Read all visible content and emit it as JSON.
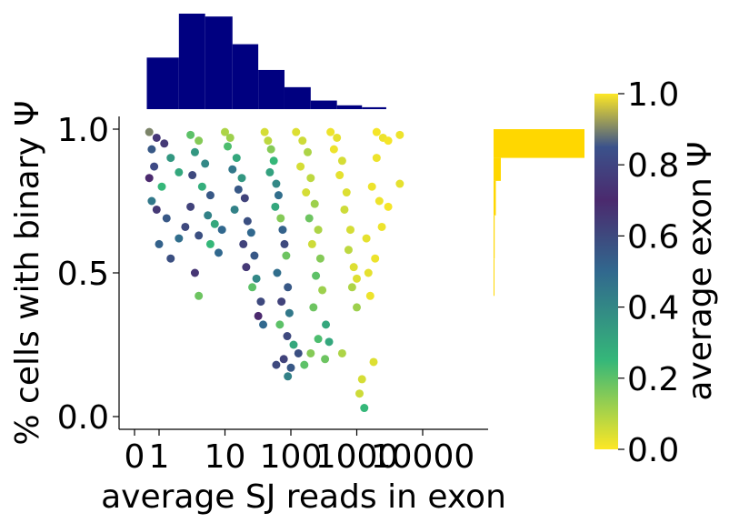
{
  "chart_data": [
    {
      "type": "scatter",
      "panel": "main",
      "xlabel": "average SJ reads in exon",
      "ylabel": "% cells with binary Ψ",
      "x_scale": "symlog",
      "xlim": [
        0,
        10000
      ],
      "ylim": [
        -0.05,
        1.05
      ],
      "x_ticks": [
        0,
        1,
        10,
        100,
        1000,
        10000
      ],
      "x_tick_labels": [
        "0",
        "1",
        "10",
        "100",
        "1000",
        "10000"
      ],
      "y_ticks": [
        0.0,
        0.5,
        1.0
      ],
      "y_tick_labels": [
        "0.0",
        "0.5",
        "1.0"
      ],
      "color_encoding": "average exon Ψ",
      "points": [
        {
          "x": 0.6,
          "y": 0.99,
          "c": 0.9
        },
        {
          "x": 0.9,
          "y": 0.97,
          "c": 0.75
        },
        {
          "x": 1.2,
          "y": 0.95,
          "c": 0.65
        },
        {
          "x": 0.7,
          "y": 0.93,
          "c": 0.55
        },
        {
          "x": 1.5,
          "y": 0.9,
          "c": 0.35
        },
        {
          "x": 0.8,
          "y": 0.87,
          "c": 0.82
        },
        {
          "x": 2.0,
          "y": 0.85,
          "c": 0.3
        },
        {
          "x": 0.6,
          "y": 0.83,
          "c": 0.7
        },
        {
          "x": 1.1,
          "y": 0.8,
          "c": 0.25
        },
        {
          "x": 0.7,
          "y": 0.75,
          "c": 0.45
        },
        {
          "x": 0.9,
          "y": 0.72,
          "c": 0.65
        },
        {
          "x": 1.3,
          "y": 0.69,
          "c": 0.55
        },
        {
          "x": 2.5,
          "y": 0.66,
          "c": 0.6
        },
        {
          "x": 1.0,
          "y": 0.6,
          "c": 0.52
        },
        {
          "x": 1.5,
          "y": 0.55,
          "c": 0.58
        },
        {
          "x": 2.0,
          "y": 0.62,
          "c": 0.48
        },
        {
          "x": 3.0,
          "y": 0.98,
          "c": 0.2
        },
        {
          "x": 4.0,
          "y": 0.96,
          "c": 0.15
        },
        {
          "x": 3.5,
          "y": 0.92,
          "c": 0.35
        },
        {
          "x": 5.0,
          "y": 0.88,
          "c": 0.4
        },
        {
          "x": 3.2,
          "y": 0.84,
          "c": 0.6
        },
        {
          "x": 4.5,
          "y": 0.8,
          "c": 0.28
        },
        {
          "x": 6.0,
          "y": 0.77,
          "c": 0.55
        },
        {
          "x": 3.0,
          "y": 0.73,
          "c": 0.62
        },
        {
          "x": 5.5,
          "y": 0.7,
          "c": 0.42
        },
        {
          "x": 7.0,
          "y": 0.67,
          "c": 0.3
        },
        {
          "x": 4.0,
          "y": 0.63,
          "c": 0.58
        },
        {
          "x": 6.0,
          "y": 0.6,
          "c": 0.25
        },
        {
          "x": 8.0,
          "y": 0.57,
          "c": 0.5
        },
        {
          "x": 3.5,
          "y": 0.5,
          "c": 0.66
        },
        {
          "x": 4.0,
          "y": 0.42,
          "c": 0.18
        },
        {
          "x": 9.0,
          "y": 0.65,
          "c": 0.5
        },
        {
          "x": 10,
          "y": 0.99,
          "c": 0.1
        },
        {
          "x": 12,
          "y": 0.97,
          "c": 0.12
        },
        {
          "x": 11,
          "y": 0.94,
          "c": 0.22
        },
        {
          "x": 15,
          "y": 0.9,
          "c": 0.3
        },
        {
          "x": 13,
          "y": 0.86,
          "c": 0.45
        },
        {
          "x": 18,
          "y": 0.83,
          "c": 0.35
        },
        {
          "x": 16,
          "y": 0.79,
          "c": 0.55
        },
        {
          "x": 20,
          "y": 0.76,
          "c": 0.62
        },
        {
          "x": 14,
          "y": 0.72,
          "c": 0.42
        },
        {
          "x": 22,
          "y": 0.68,
          "c": 0.58
        },
        {
          "x": 25,
          "y": 0.64,
          "c": 0.5
        },
        {
          "x": 19,
          "y": 0.6,
          "c": 0.62
        },
        {
          "x": 28,
          "y": 0.56,
          "c": 0.55
        },
        {
          "x": 21,
          "y": 0.52,
          "c": 0.65
        },
        {
          "x": 30,
          "y": 0.48,
          "c": 0.4
        },
        {
          "x": 26,
          "y": 0.45,
          "c": 0.2
        },
        {
          "x": 35,
          "y": 0.4,
          "c": 0.6
        },
        {
          "x": 32,
          "y": 0.35,
          "c": 0.7
        },
        {
          "x": 38,
          "y": 0.32,
          "c": 0.5
        },
        {
          "x": 40,
          "y": 0.99,
          "c": 0.05
        },
        {
          "x": 45,
          "y": 0.96,
          "c": 0.08
        },
        {
          "x": 50,
          "y": 0.93,
          "c": 0.15
        },
        {
          "x": 55,
          "y": 0.89,
          "c": 0.25
        },
        {
          "x": 48,
          "y": 0.85,
          "c": 0.32
        },
        {
          "x": 60,
          "y": 0.81,
          "c": 0.4
        },
        {
          "x": 65,
          "y": 0.77,
          "c": 0.48
        },
        {
          "x": 58,
          "y": 0.73,
          "c": 0.3
        },
        {
          "x": 70,
          "y": 0.69,
          "c": 0.15
        },
        {
          "x": 75,
          "y": 0.65,
          "c": 0.52
        },
        {
          "x": 80,
          "y": 0.6,
          "c": 0.6
        },
        {
          "x": 85,
          "y": 0.56,
          "c": 0.18
        },
        {
          "x": 62,
          "y": 0.5,
          "c": 0.48
        },
        {
          "x": 90,
          "y": 0.45,
          "c": 0.55
        },
        {
          "x": 72,
          "y": 0.4,
          "c": 0.62
        },
        {
          "x": 95,
          "y": 0.36,
          "c": 0.45
        },
        {
          "x": 68,
          "y": 0.32,
          "c": 0.2
        },
        {
          "x": 88,
          "y": 0.28,
          "c": 0.6
        },
        {
          "x": 110,
          "y": 0.25,
          "c": 0.3
        },
        {
          "x": 78,
          "y": 0.2,
          "c": 0.62
        },
        {
          "x": 100,
          "y": 0.17,
          "c": 0.55
        },
        {
          "x": 130,
          "y": 0.22,
          "c": 0.58
        },
        {
          "x": 60,
          "y": 0.18,
          "c": 0.6
        },
        {
          "x": 90,
          "y": 0.14,
          "c": 0.42
        },
        {
          "x": 120,
          "y": 0.99,
          "c": 0.04
        },
        {
          "x": 150,
          "y": 0.96,
          "c": 0.06
        },
        {
          "x": 180,
          "y": 0.92,
          "c": 0.1
        },
        {
          "x": 140,
          "y": 0.87,
          "c": 0.05
        },
        {
          "x": 200,
          "y": 0.83,
          "c": 0.08
        },
        {
          "x": 170,
          "y": 0.78,
          "c": 0.05
        },
        {
          "x": 230,
          "y": 0.74,
          "c": 0.12
        },
        {
          "x": 190,
          "y": 0.69,
          "c": 0.18
        },
        {
          "x": 260,
          "y": 0.65,
          "c": 0.1
        },
        {
          "x": 210,
          "y": 0.6,
          "c": 0.06
        },
        {
          "x": 280,
          "y": 0.55,
          "c": 0.15
        },
        {
          "x": 240,
          "y": 0.49,
          "c": 0.2
        },
        {
          "x": 300,
          "y": 0.44,
          "c": 0.12
        },
        {
          "x": 220,
          "y": 0.38,
          "c": 0.18
        },
        {
          "x": 340,
          "y": 0.32,
          "c": 0.3
        },
        {
          "x": 260,
          "y": 0.27,
          "c": 0.22
        },
        {
          "x": 200,
          "y": 0.22,
          "c": 0.15
        },
        {
          "x": 380,
          "y": 0.26,
          "c": 0.3
        },
        {
          "x": 330,
          "y": 0.2,
          "c": 0.18
        },
        {
          "x": 160,
          "y": 0.18,
          "c": 0.2
        },
        {
          "x": 400,
          "y": 0.99,
          "c": 0.02
        },
        {
          "x": 500,
          "y": 0.97,
          "c": 0.03
        },
        {
          "x": 450,
          "y": 0.93,
          "c": 0.02
        },
        {
          "x": 600,
          "y": 0.89,
          "c": 0.05
        },
        {
          "x": 550,
          "y": 0.84,
          "c": 0.03
        },
        {
          "x": 700,
          "y": 0.78,
          "c": 0.04
        },
        {
          "x": 650,
          "y": 0.72,
          "c": 0.06
        },
        {
          "x": 800,
          "y": 0.65,
          "c": 0.05
        },
        {
          "x": 750,
          "y": 0.58,
          "c": 0.08
        },
        {
          "x": 900,
          "y": 0.52,
          "c": 0.04
        },
        {
          "x": 850,
          "y": 0.45,
          "c": 0.1
        },
        {
          "x": 1000,
          "y": 0.38,
          "c": 0.12
        },
        {
          "x": 600,
          "y": 0.22,
          "c": 0.1
        },
        {
          "x": 1200,
          "y": 0.13,
          "c": 0.05
        },
        {
          "x": 1300,
          "y": 0.03,
          "c": 0.25
        },
        {
          "x": 1100,
          "y": 0.08,
          "c": 0.06
        },
        {
          "x": 1800,
          "y": 0.19,
          "c": 0.04
        },
        {
          "x": 1500,
          "y": 0.5,
          "c": 0.03
        },
        {
          "x": 1600,
          "y": 0.42,
          "c": 0.02
        },
        {
          "x": 1400,
          "y": 0.62,
          "c": 0.03
        },
        {
          "x": 2000,
          "y": 0.99,
          "c": 0.01
        },
        {
          "x": 2500,
          "y": 0.97,
          "c": 0.02
        },
        {
          "x": 3000,
          "y": 0.96,
          "c": 0.01
        },
        {
          "x": 4500,
          "y": 0.98,
          "c": 0.02
        },
        {
          "x": 2200,
          "y": 0.75,
          "c": 0.02
        },
        {
          "x": 3000,
          "y": 0.73,
          "c": 0.01
        },
        {
          "x": 4500,
          "y": 0.81,
          "c": 0.03
        },
        {
          "x": 2000,
          "y": 0.9,
          "c": 0.02
        },
        {
          "x": 1700,
          "y": 0.8,
          "c": 0.02
        },
        {
          "x": 2400,
          "y": 0.66,
          "c": 0.02
        },
        {
          "x": 1900,
          "y": 0.55,
          "c": 0.02
        },
        {
          "x": 1000,
          "y": 0.48,
          "c": 0.04
        }
      ]
    },
    {
      "type": "bar",
      "panel": "top-histogram",
      "x_scale": "symlog",
      "bin_edges": [
        0.5,
        2,
        5,
        13,
        32,
        80,
        200,
        500,
        1200,
        2800
      ],
      "values": [
        0.54,
        1.0,
        0.97,
        0.68,
        0.41,
        0.23,
        0.09,
        0.04,
        0.02
      ],
      "color": "#000080"
    },
    {
      "type": "bar",
      "panel": "right-histogram",
      "orientation": "horizontal",
      "bin_edges_y": [
        0.9,
        1.0
      ],
      "values": [
        1.0
      ],
      "extra_bars": [
        {
          "y0": 0.82,
          "y1": 0.9,
          "v": 0.08
        },
        {
          "y0": 0.7,
          "y1": 0.82,
          "v": 0.025
        },
        {
          "y0": 0.55,
          "y1": 0.7,
          "v": 0.012
        },
        {
          "y0": 0.42,
          "y1": 0.55,
          "v": 0.008
        }
      ],
      "color": "#FFD700"
    },
    {
      "type": "colorbar",
      "label": "average exon Ψ",
      "colormap": "viridis_r",
      "range": [
        0.0,
        1.0
      ],
      "ticks": [
        0.0,
        0.2,
        0.4,
        0.6,
        0.8,
        1.0
      ],
      "tick_labels": [
        "0.0",
        "0.2",
        "0.4",
        "0.6",
        "0.8",
        "1.0"
      ]
    }
  ]
}
